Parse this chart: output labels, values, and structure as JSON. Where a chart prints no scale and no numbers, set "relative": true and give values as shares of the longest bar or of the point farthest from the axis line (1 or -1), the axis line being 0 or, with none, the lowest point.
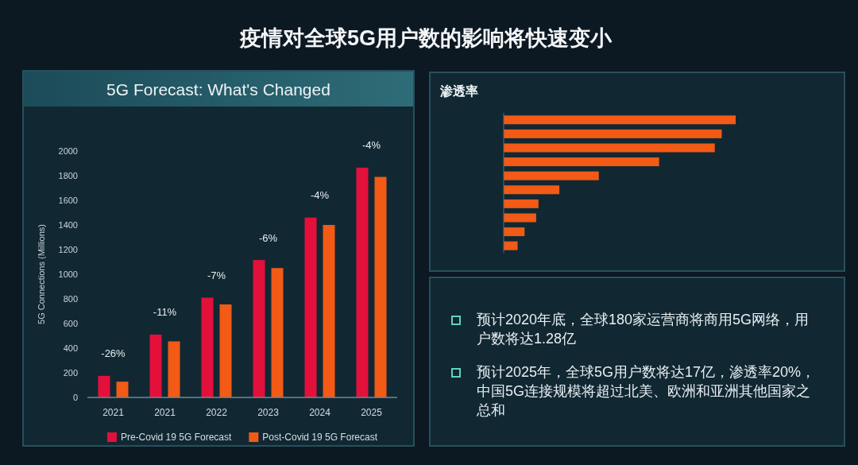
{
  "chart_data": [
    {
      "type": "other",
      "title": "疫情对全球5G用户数的影响将快速变小"
    },
    {
      "type": "bar",
      "title": "5G Forecast: What's Changed",
      "ylabel": "5G Connections (Millions)",
      "categories": [
        "2021",
        "2021",
        "2022",
        "2023",
        "2024",
        "2025"
      ],
      "series": [
        {
          "name": "Pre-Covid 19 5G Forecast",
          "color": "#e3103c",
          "values": [
            175,
            510,
            810,
            1115,
            1460,
            1865
          ]
        },
        {
          "name": "Post-Covid 19 5G Forecast",
          "color": "#f25a16",
          "values": [
            128,
            455,
            755,
            1050,
            1400,
            1790
          ]
        }
      ],
      "ylim": [
        0,
        2000
      ],
      "yticks": [
        0,
        200,
        400,
        600,
        800,
        1000,
        1200,
        1400,
        1600,
        1800,
        2000
      ],
      "annotations": [
        "-26%",
        "-11%",
        "-7%",
        "-6%",
        "-4%",
        "-4%"
      ],
      "legend": "bottom"
    },
    {
      "type": "bar",
      "title": "渗透率",
      "orientation": "horizontal",
      "relative": true,
      "categories": [
        null,
        null,
        null,
        null,
        null,
        null,
        null,
        null,
        null,
        null
      ],
      "values": [
        1,
        0.94,
        0.91,
        0.67,
        0.41,
        0.24,
        0.15,
        0.14,
        0.09,
        0.06
      ],
      "color": "#f25a16"
    },
    {
      "type": "other",
      "annotations": [
        "预计2020年底，全球180家运营商将商用5G网络，用户数将达1.28亿",
        "预计2025年，全球5G用户数将达17亿，渗透率20%，中国5G连接规模将超过北美、欧洲和亚洲其他国家之总和"
      ]
    }
  ]
}
